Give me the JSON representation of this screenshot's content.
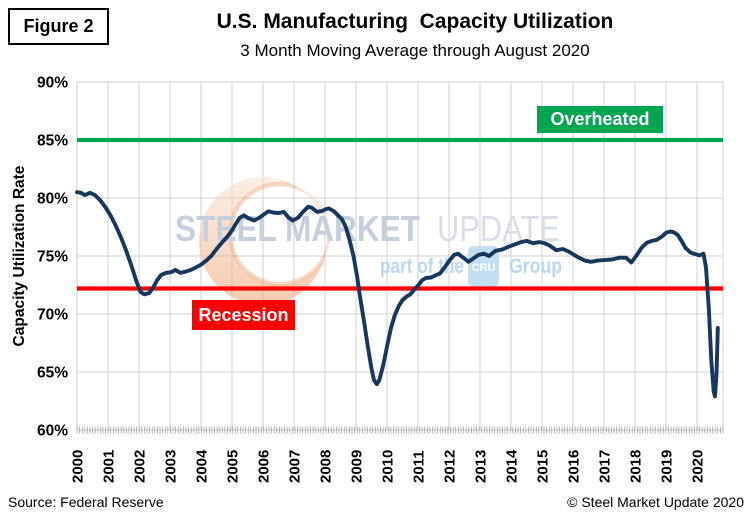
{
  "figure_label": "Figure 2",
  "title": "U.S. Manufacturing  Capacity Utilization",
  "subtitle": "3 Month Moving Average through August 2020",
  "annotations": {
    "overheated": "Overheated",
    "recession": "Recession"
  },
  "watermark": {
    "brand_bold": "STEEL MARKET",
    "brand_light": "UPDATE",
    "tagline_prefix": "part of the",
    "logo_text": "CRU",
    "tagline_suffix": "Group"
  },
  "footer": {
    "source": "Source: Federal Reserve",
    "copyright": "© Steel Market Update 2020"
  },
  "colors": {
    "series": "#17375D",
    "overheated": "#00A651",
    "recession": "#FF0000",
    "gridline": "#D9D9D9",
    "minor_tick": "#9A9A9A",
    "axis_text": "#000000",
    "watermark_text": "#C6CFDC",
    "watermark_text_light": "#D9DDE7",
    "watermark_blue": "#BAD7EF",
    "watermark_logo": "#C3DDF1",
    "crescent_light": "#F9E0CD",
    "crescent_dark": "#EC9863",
    "crescent_edge": "#E78B52"
  },
  "chart_data": {
    "type": "line",
    "title": "U.S. Manufacturing Capacity Utilization",
    "subtitle": "3 Month Moving Average through August 2020",
    "xlabel": "",
    "ylabel": "Capacity Utilization Rate",
    "ylim": [
      60,
      90
    ],
    "xlim": [
      2000,
      2021
    ],
    "grid": true,
    "y_ticks": [
      "90%",
      "85%",
      "80%",
      "75%",
      "70%",
      "65%",
      "60%"
    ],
    "x_ticks": [
      "2000",
      "2001",
      "2002",
      "2003",
      "2004",
      "2005",
      "2006",
      "2007",
      "2008",
      "2009",
      "2010",
      "2011",
      "2012",
      "2013",
      "2014",
      "2015",
      "2016",
      "2017",
      "2018",
      "2019",
      "2020"
    ],
    "reference_lines": [
      {
        "name": "Overheated",
        "value": 85,
        "color": "#00A651"
      },
      {
        "name": "Recession",
        "value": 72.2,
        "color": "#FF0000"
      }
    ],
    "series": [
      {
        "name": "U.S. Manufacturing Capacity Utilization Rate, 3-month moving average (%)",
        "color": "#17375D",
        "points": [
          [
            2000.0,
            80.5
          ],
          [
            2000.13,
            80.45
          ],
          [
            2000.25,
            80.25
          ],
          [
            2000.42,
            80.45
          ],
          [
            2000.58,
            80.25
          ],
          [
            2000.75,
            79.8
          ],
          [
            2000.92,
            79.2
          ],
          [
            2001.08,
            78.5
          ],
          [
            2001.25,
            77.6
          ],
          [
            2001.42,
            76.6
          ],
          [
            2001.58,
            75.5
          ],
          [
            2001.75,
            74.2
          ],
          [
            2001.92,
            72.8
          ],
          [
            2002.05,
            71.9
          ],
          [
            2002.17,
            71.7
          ],
          [
            2002.33,
            71.8
          ],
          [
            2002.46,
            72.3
          ],
          [
            2002.58,
            72.9
          ],
          [
            2002.71,
            73.35
          ],
          [
            2002.88,
            73.55
          ],
          [
            2003.04,
            73.6
          ],
          [
            2003.17,
            73.8
          ],
          [
            2003.33,
            73.55
          ],
          [
            2003.5,
            73.65
          ],
          [
            2003.67,
            73.8
          ],
          [
            2003.83,
            74.0
          ],
          [
            2004.0,
            74.25
          ],
          [
            2004.17,
            74.6
          ],
          [
            2004.33,
            75.0
          ],
          [
            2004.5,
            75.6
          ],
          [
            2004.67,
            76.15
          ],
          [
            2004.83,
            76.6
          ],
          [
            2005.0,
            77.2
          ],
          [
            2005.13,
            77.8
          ],
          [
            2005.25,
            78.3
          ],
          [
            2005.38,
            78.5
          ],
          [
            2005.54,
            78.25
          ],
          [
            2005.71,
            78.05
          ],
          [
            2005.88,
            78.3
          ],
          [
            2006.04,
            78.6
          ],
          [
            2006.17,
            78.85
          ],
          [
            2006.33,
            78.75
          ],
          [
            2006.5,
            78.7
          ],
          [
            2006.67,
            78.8
          ],
          [
            2006.83,
            78.3
          ],
          [
            2006.96,
            78.05
          ],
          [
            2007.13,
            78.3
          ],
          [
            2007.29,
            78.8
          ],
          [
            2007.46,
            79.25
          ],
          [
            2007.58,
            79.15
          ],
          [
            2007.75,
            78.8
          ],
          [
            2007.92,
            78.9
          ],
          [
            2008.04,
            79.05
          ],
          [
            2008.13,
            79.1
          ],
          [
            2008.29,
            78.85
          ],
          [
            2008.42,
            78.5
          ],
          [
            2008.54,
            78.2
          ],
          [
            2008.67,
            77.5
          ],
          [
            2008.79,
            76.4
          ],
          [
            2008.92,
            75.0
          ],
          [
            2009.04,
            73.2
          ],
          [
            2009.13,
            71.5
          ],
          [
            2009.25,
            69.5
          ],
          [
            2009.38,
            67.2
          ],
          [
            2009.5,
            65.3
          ],
          [
            2009.58,
            64.3
          ],
          [
            2009.67,
            63.95
          ],
          [
            2009.75,
            64.3
          ],
          [
            2009.88,
            65.6
          ],
          [
            2010.0,
            67.2
          ],
          [
            2010.13,
            68.8
          ],
          [
            2010.25,
            69.9
          ],
          [
            2010.38,
            70.7
          ],
          [
            2010.5,
            71.2
          ],
          [
            2010.63,
            71.5
          ],
          [
            2010.75,
            71.7
          ],
          [
            2010.88,
            72.1
          ],
          [
            2011.0,
            72.45
          ],
          [
            2011.13,
            72.9
          ],
          [
            2011.25,
            73.1
          ],
          [
            2011.42,
            73.15
          ],
          [
            2011.54,
            73.3
          ],
          [
            2011.71,
            73.5
          ],
          [
            2011.88,
            74.1
          ],
          [
            2012.04,
            74.7
          ],
          [
            2012.17,
            75.1
          ],
          [
            2012.29,
            75.2
          ],
          [
            2012.46,
            74.85
          ],
          [
            2012.63,
            74.5
          ],
          [
            2012.79,
            74.8
          ],
          [
            2012.96,
            75.1
          ],
          [
            2013.13,
            75.2
          ],
          [
            2013.29,
            75.0
          ],
          [
            2013.5,
            75.45
          ],
          [
            2013.71,
            75.55
          ],
          [
            2013.92,
            75.8
          ],
          [
            2014.13,
            76.0
          ],
          [
            2014.33,
            76.2
          ],
          [
            2014.5,
            76.3
          ],
          [
            2014.71,
            76.1
          ],
          [
            2014.92,
            76.2
          ],
          [
            2015.08,
            76.1
          ],
          [
            2015.25,
            75.9
          ],
          [
            2015.46,
            75.5
          ],
          [
            2015.67,
            75.6
          ],
          [
            2015.88,
            75.35
          ],
          [
            2016.13,
            74.95
          ],
          [
            2016.38,
            74.6
          ],
          [
            2016.58,
            74.5
          ],
          [
            2016.79,
            74.6
          ],
          [
            2017.0,
            74.65
          ],
          [
            2017.25,
            74.7
          ],
          [
            2017.5,
            74.85
          ],
          [
            2017.71,
            74.85
          ],
          [
            2017.88,
            74.45
          ],
          [
            2018.04,
            75.0
          ],
          [
            2018.21,
            75.7
          ],
          [
            2018.38,
            76.15
          ],
          [
            2018.54,
            76.3
          ],
          [
            2018.71,
            76.4
          ],
          [
            2018.88,
            76.7
          ],
          [
            2019.0,
            77.0
          ],
          [
            2019.13,
            77.1
          ],
          [
            2019.25,
            77.05
          ],
          [
            2019.38,
            76.8
          ],
          [
            2019.5,
            76.3
          ],
          [
            2019.63,
            75.7
          ],
          [
            2019.79,
            75.3
          ],
          [
            2019.96,
            75.15
          ],
          [
            2020.08,
            75.05
          ],
          [
            2020.21,
            75.2
          ],
          [
            2020.29,
            74.0
          ],
          [
            2020.38,
            70.5
          ],
          [
            2020.46,
            66.0
          ],
          [
            2020.54,
            63.3
          ],
          [
            2020.58,
            62.9
          ],
          [
            2020.63,
            64.8
          ],
          [
            2020.67,
            68.8
          ]
        ]
      }
    ]
  }
}
